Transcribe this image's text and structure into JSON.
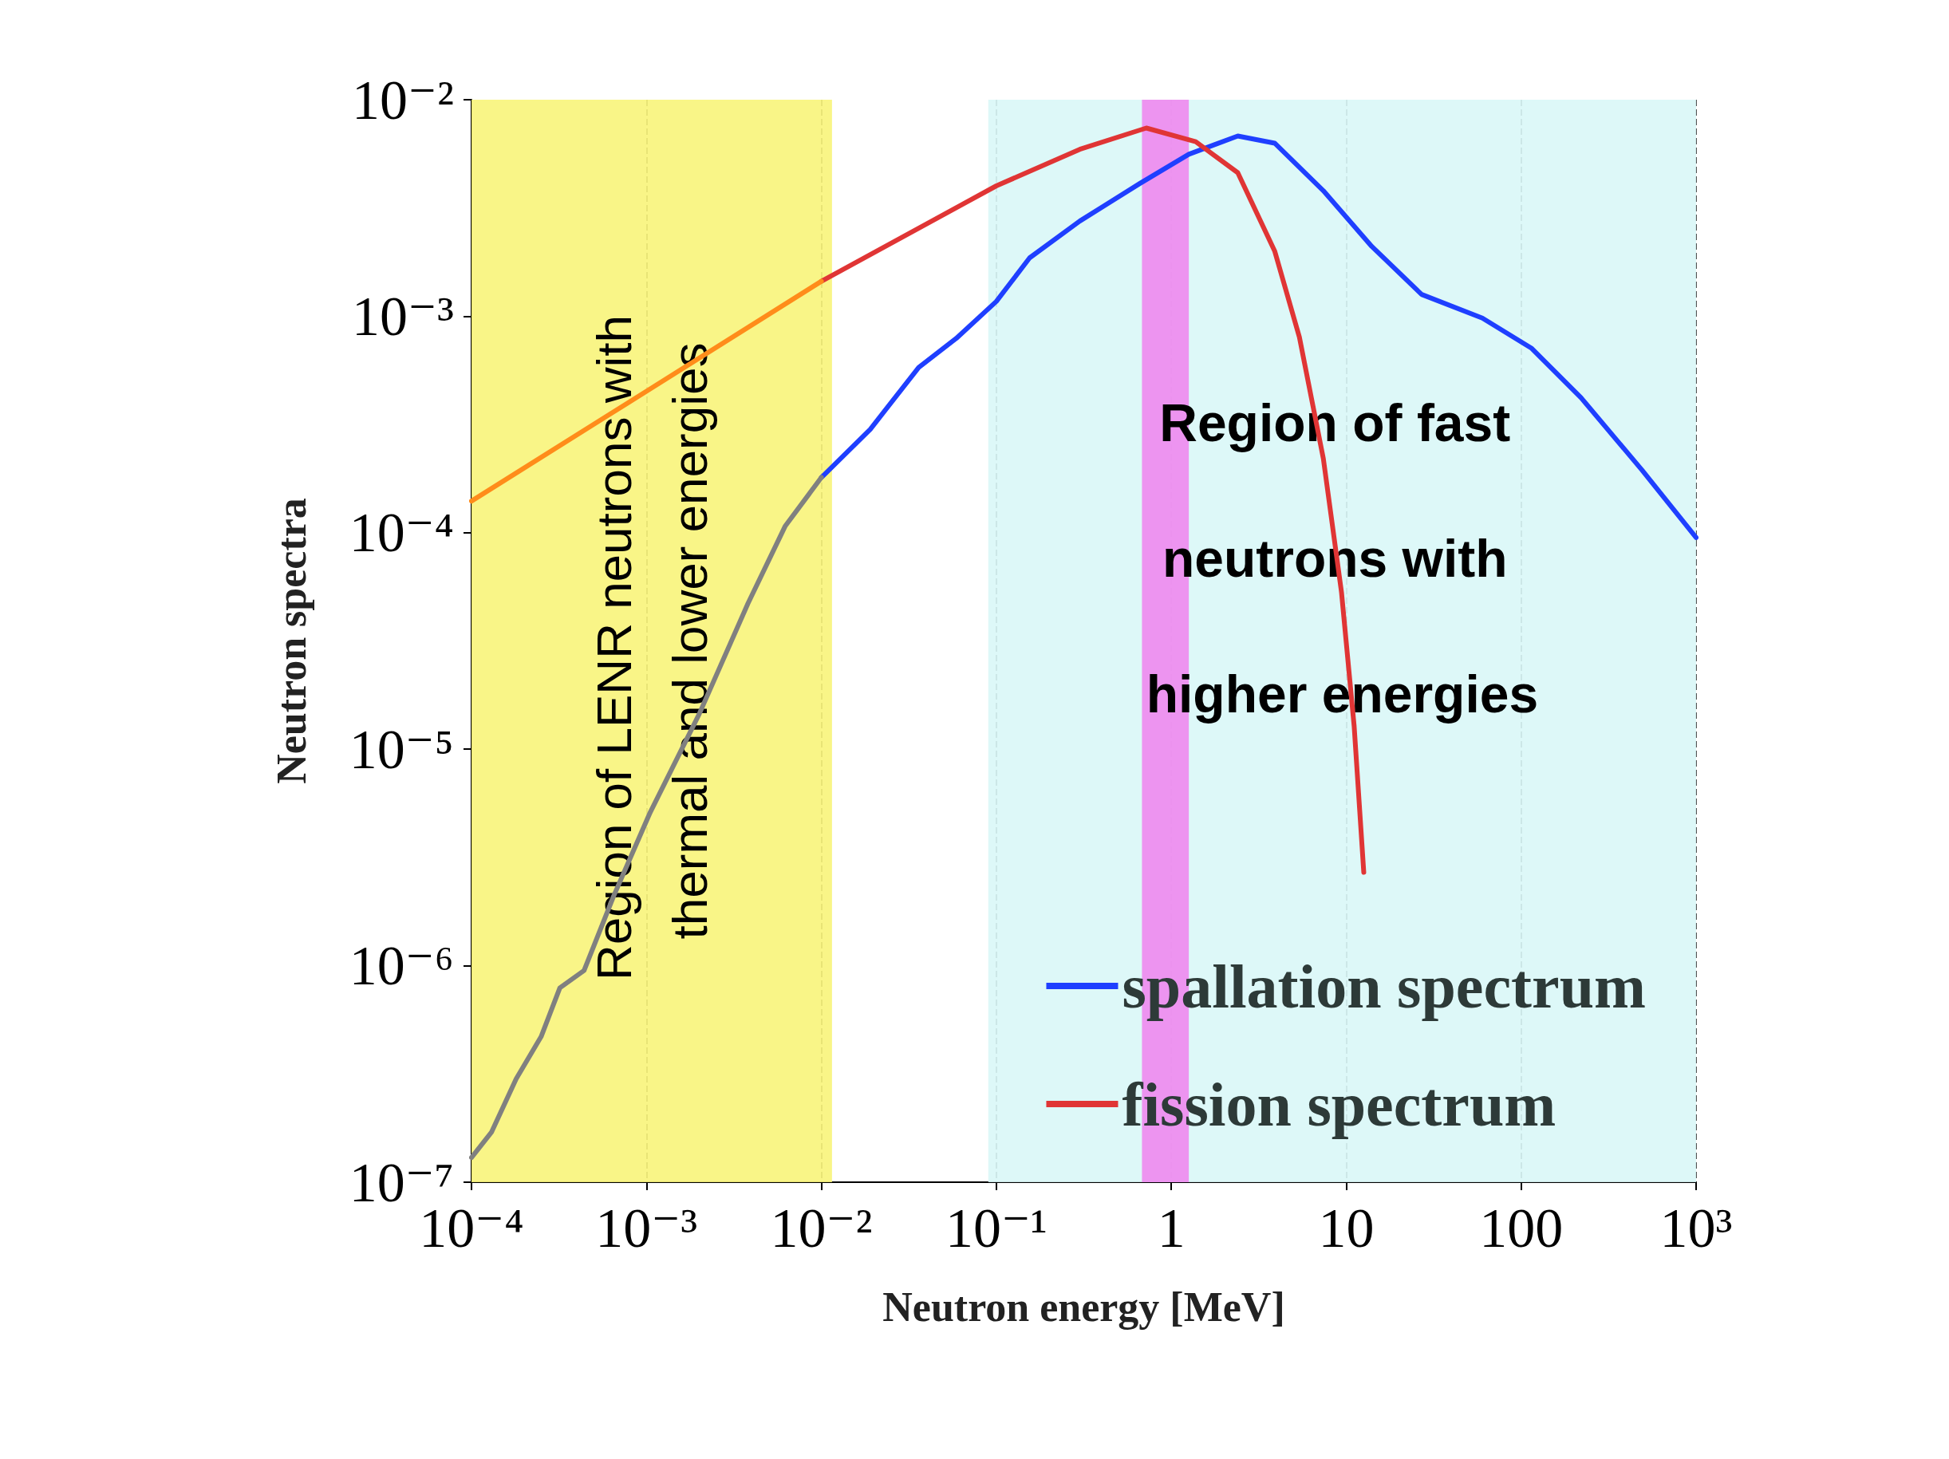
{
  "chart_data": {
    "type": "line",
    "xlabel": "Neutron energy [MeV]",
    "ylabel": "Neutron spectra",
    "log": "xy",
    "grid": "x",
    "legend": "bottom right",
    "xlim": [
      0.0001,
      1000
    ],
    "ylim": [
      1e-07,
      0.01
    ],
    "xticks": [
      {
        "value": 0.0001,
        "label": "10⁻⁴"
      },
      {
        "value": 0.001,
        "label": "10⁻³"
      },
      {
        "value": 0.01,
        "label": "10⁻²"
      },
      {
        "value": 0.1,
        "label": "10⁻¹"
      },
      1,
      10,
      100,
      {
        "value": 1000,
        "label": "10³"
      }
    ],
    "yticks": [
      {
        "value": 1e-07,
        "label": "10⁻⁷"
      },
      {
        "value": 1e-06,
        "label": "10⁻⁶"
      },
      {
        "value": 1e-05,
        "label": "10⁻⁵"
      },
      {
        "value": 0.0001,
        "label": "10⁻⁴"
      },
      {
        "value": 0.001,
        "label": "10⁻³"
      },
      {
        "value": 0.01,
        "label": "10⁻²"
      }
    ],
    "series": [
      {
        "name": "spallation spectrum",
        "color": "#1f3fff",
        "x": [
          0.01,
          0.019,
          0.036,
          0.059,
          0.1,
          0.155,
          0.3,
          0.66,
          1.26,
          2.4,
          3.9,
          7.4,
          14,
          27,
          60,
          115,
          220,
          490,
          1000
        ],
        "values": [
          0.00018,
          0.0003,
          0.00058,
          0.00079,
          0.00117,
          0.00186,
          0.00275,
          0.0041,
          0.0056,
          0.0068,
          0.0063,
          0.0038,
          0.0021,
          0.00126,
          0.00098,
          0.00071,
          0.00042,
          0.000195,
          9.5e-05
        ]
      },
      {
        "name": "fission spectrum",
        "color": "#e03535",
        "x": [
          0.01,
          0.1,
          0.3,
          0.72,
          1.38,
          2.4,
          3.9,
          5.4,
          7.4,
          9.4,
          11.1,
          12.6
        ],
        "values": [
          0.00145,
          0.004,
          0.0059,
          0.0074,
          0.0064,
          0.0046,
          0.002,
          0.0008,
          0.00022,
          5.3e-05,
          1.28e-05,
          2.7e-06
        ]
      },
      {
        "color": "#808080",
        "x": [
          0.0001,
          0.00013,
          0.00018,
          0.00025,
          0.00032,
          0.00044,
          0.00065,
          0.00105,
          0.002,
          0.0038,
          0.0062,
          0.01
        ],
        "values": [
          1.3e-07,
          1.7e-07,
          3e-07,
          4.7e-07,
          7.9e-07,
          9.5e-07,
          2.1e-06,
          5.1e-06,
          1.45e-05,
          4.7e-05,
          0.000107,
          0.00018
        ]
      },
      {
        "color": "#ff8c1a",
        "x": [
          0.0001,
          0.001,
          0.01
        ],
        "values": [
          0.00014,
          0.00045,
          0.00145
        ]
      }
    ],
    "bands": [
      {
        "axis": "x",
        "from": 0.0001,
        "to": 0.0115,
        "label": "Region of LENR neutrons with thermal and lower energies",
        "color": "#f8f47a"
      },
      {
        "axis": "x",
        "from": 0.09,
        "to": 1000,
        "label": "Region of fast neutrons with higher energies",
        "color": "#d9f7f7"
      },
      {
        "axis": "x",
        "from": 0.68,
        "to": 1.26,
        "color": "#ee88ee"
      }
    ]
  }
}
